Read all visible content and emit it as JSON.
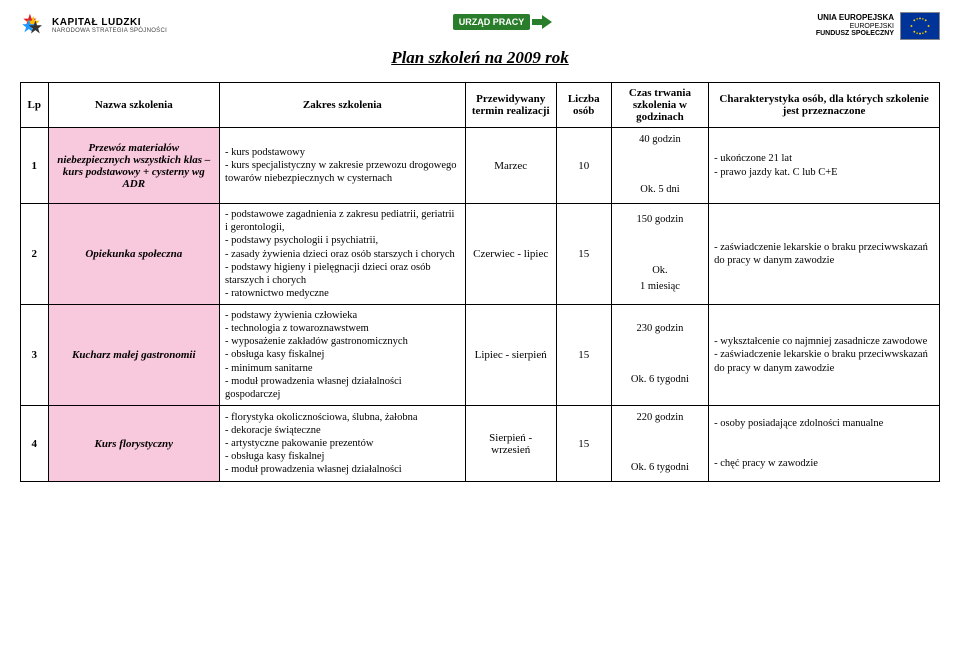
{
  "logos": {
    "kl_title": "KAPITAŁ LUDZKI",
    "kl_sub": "NARODOWA STRATEGIA SPÓJNOŚCI",
    "up_badge": "URZĄD PRACY",
    "eu_line1": "UNIA EUROPEJSKA",
    "eu_line2": "EUROPEJSKI",
    "eu_line3": "FUNDUSZ SPOŁECZNY"
  },
  "title": "Plan szkoleń na 2009 rok",
  "columns": {
    "lp": "Lp",
    "name": "Nazwa szkolenia",
    "scope": "Zakres szkolenia",
    "term": "Przewidywany termin realizacji",
    "num": "Liczba osób",
    "dur": "Czas trwania szkolenia w godzinach",
    "char": "Charakterystyka osób, dla których szkolenie jest przeznaczone"
  },
  "rows": [
    {
      "lp": "1",
      "name": "Przewóz materiałów niebezpiecznych wszystkich klas – kurs podstawowy + cysterny wg ADR",
      "scope": "- kurs podstawowy\n- kurs specjalistyczny w zakresie przewozu drogowego towarów niebezpiecznych w cysternach",
      "term": "Marzec",
      "num": "10",
      "dur": "40 godzin\n\nOk. 5 dni",
      "char": "- ukończone 21 lat\n- prawo  jazdy kat. C lub C+E"
    },
    {
      "lp": "2",
      "name": "Opiekunka społeczna",
      "scope": "- podstawowe zagadnienia z zakresu pediatrii, geriatrii i gerontologii,\n- podstawy psychologii i psychiatrii,\n- zasady żywienia dzieci oraz osób starszych i chorych\n- podstawy higieny i pielęgnacji dzieci oraz osób starszych i chorych\n- ratownictwo medyczne",
      "term": "Czerwiec - lipiec",
      "num": "15",
      "dur": "150 godzin\n\nOk.\n1 miesiąc",
      "char": "- zaświadczenie lekarskie o braku przeciwwskazań do pracy w danym zawodzie"
    },
    {
      "lp": "3",
      "name": "Kucharz małej gastronomii",
      "scope": "- podstawy żywienia człowieka\n- technologia z towaroznawstwem\n- wyposażenie zakładów gastronomicznych\n- obsługa kasy fiskalnej\n- minimum sanitarne\n- moduł prowadzenia własnej działalności gospodarczej",
      "term": "Lipiec - sierpień",
      "num": "15",
      "dur": "230 godzin\n\nOk. 6 tygodni",
      "char": "- wykształcenie co najmniej zasadnicze zawodowe\n- zaświadczenie lekarskie o braku przeciwwskazań do pracy w danym zawodzie"
    },
    {
      "lp": "4",
      "name": "Kurs florystyczny",
      "scope": "- florystyka okolicznościowa, ślubna, żałobna\n- dekoracje świąteczne\n- artystyczne pakowanie prezentów\n- obsługa kasy fiskalnej\n- moduł prowadzenia własnej działalności",
      "term": "Sierpień - wrzesień",
      "num": "15",
      "dur": "220 godzin\n\nOk. 6 tygodni",
      "char": "- osoby posiadające zdolności manualne\n\n- chęć pracy w zawodzie"
    }
  ],
  "colors": {
    "pink": "#f8c8dc",
    "green": "#2a7d2a",
    "eu_blue": "#003399",
    "eu_gold": "#ffcc00"
  }
}
